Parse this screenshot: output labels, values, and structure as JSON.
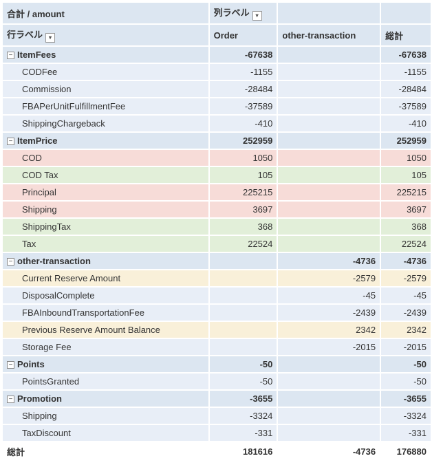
{
  "header": {
    "measure": "合計 / amount",
    "colLabel": "列ラベル",
    "rowLabel": "行ラベル",
    "col1": "Order",
    "col2": "other-transaction",
    "col3": "総計"
  },
  "groups": [
    {
      "label": "ItemFees",
      "order": "-67638",
      "other": "",
      "total": "-67638",
      "rows": [
        {
          "style": "sub-lt-blue",
          "label": "CODFee",
          "order": "-1155",
          "other": "",
          "total": "-1155"
        },
        {
          "style": "sub-lt-blue",
          "label": "Commission",
          "order": "-28484",
          "other": "",
          "total": "-28484"
        },
        {
          "style": "sub-lt-blue",
          "label": "FBAPerUnitFulfillmentFee",
          "order": "-37589",
          "other": "",
          "total": "-37589"
        },
        {
          "style": "sub-lt-blue",
          "label": "ShippingChargeback",
          "order": "-410",
          "other": "",
          "total": "-410"
        }
      ]
    },
    {
      "label": "ItemPrice",
      "order": "252959",
      "other": "",
      "total": "252959",
      "rows": [
        {
          "style": "sub-pink",
          "label": "COD",
          "order": "1050",
          "other": "",
          "total": "1050"
        },
        {
          "style": "sub-green",
          "label": "COD Tax",
          "order": "105",
          "other": "",
          "total": "105"
        },
        {
          "style": "sub-pink",
          "label": "Principal",
          "order": "225215",
          "other": "",
          "total": "225215"
        },
        {
          "style": "sub-pink",
          "label": "Shipping",
          "order": "3697",
          "other": "",
          "total": "3697"
        },
        {
          "style": "sub-green",
          "label": "ShippingTax",
          "order": "368",
          "other": "",
          "total": "368"
        },
        {
          "style": "sub-green",
          "label": "Tax",
          "order": "22524",
          "other": "",
          "total": "22524"
        }
      ]
    },
    {
      "label": "other-transaction",
      "order": "",
      "other": "-4736",
      "total": "-4736",
      "rows": [
        {
          "style": "sub-beige",
          "label": "Current Reserve Amount",
          "order": "",
          "other": "-2579",
          "total": "-2579"
        },
        {
          "style": "sub-lt-blue",
          "label": "DisposalComplete",
          "order": "",
          "other": "-45",
          "total": "-45"
        },
        {
          "style": "sub-lt-blue",
          "label": "FBAInboundTransportationFee",
          "order": "",
          "other": "-2439",
          "total": "-2439"
        },
        {
          "style": "sub-beige",
          "label": "Previous Reserve Amount Balance",
          "order": "",
          "other": "2342",
          "total": "2342"
        },
        {
          "style": "sub-lt-blue",
          "label": "Storage Fee",
          "order": "",
          "other": "-2015",
          "total": "-2015"
        }
      ]
    },
    {
      "label": "Points",
      "order": "-50",
      "other": "",
      "total": "-50",
      "rows": [
        {
          "style": "sub-lt-blue",
          "label": "PointsGranted",
          "order": "-50",
          "other": "",
          "total": "-50"
        }
      ]
    },
    {
      "label": "Promotion",
      "order": "-3655",
      "other": "",
      "total": "-3655",
      "rows": [
        {
          "style": "sub-lt-blue",
          "label": "Shipping",
          "order": "-3324",
          "other": "",
          "total": "-3324"
        },
        {
          "style": "sub-lt-blue",
          "label": "TaxDiscount",
          "order": "-331",
          "other": "",
          "total": "-331"
        }
      ]
    }
  ],
  "grand": {
    "label": "総計",
    "order": "181616",
    "other": "-4736",
    "total": "176880"
  },
  "icons": {
    "expand": "−",
    "dropdown": "▾"
  }
}
